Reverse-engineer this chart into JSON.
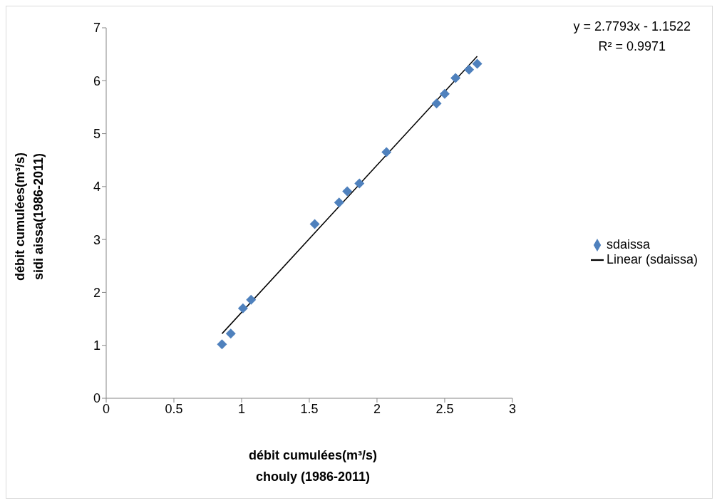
{
  "chart_data": {
    "type": "scatter",
    "xlabel": "débit cumulées(m³/s)\nchouly (1986-2011)",
    "ylabel": "débit cumulées(m³/s)\nsidi aissa(1986-2011)",
    "xlim": [
      0,
      3
    ],
    "xticks": [
      0,
      0.5,
      1,
      1.5,
      2,
      2.5,
      3
    ],
    "ylim": [
      0,
      7
    ],
    "yticks": [
      0,
      1,
      2,
      3,
      4,
      5,
      6,
      7
    ],
    "legend": "right",
    "annotations": [
      "y = 2.7793x - 1.1522",
      "R² = 0.9971"
    ],
    "series": [
      {
        "name": "sdaissa",
        "marker": "diamond",
        "color": "#4f81bd",
        "x": [
          0.855,
          0.92,
          1.01,
          1.07,
          1.54,
          1.72,
          1.78,
          1.87,
          2.07,
          2.44,
          2.5,
          2.58,
          2.68,
          2.74
        ],
        "values": [
          1.02,
          1.22,
          1.7,
          1.86,
          3.29,
          3.7,
          3.91,
          4.06,
          4.65,
          5.57,
          5.75,
          6.05,
          6.21,
          6.32
        ]
      },
      {
        "name": "Linear (sdaissa)",
        "type": "line",
        "color": "#000000",
        "line_style": "solid",
        "x": [
          0.855,
          2.74
        ],
        "values": [
          1.22,
          6.46
        ]
      }
    ]
  }
}
